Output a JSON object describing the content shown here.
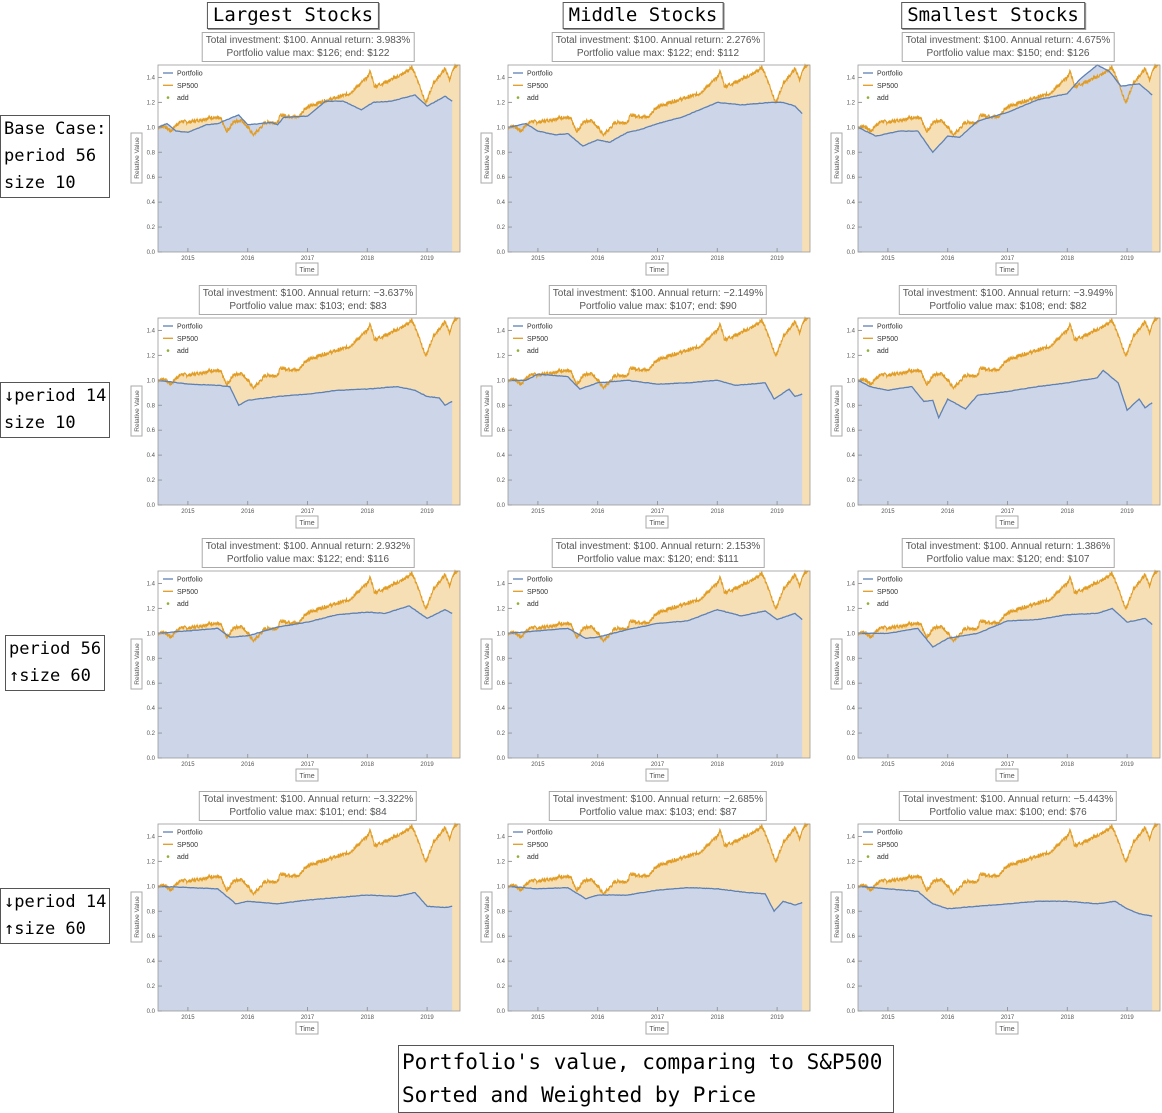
{
  "column_titles": [
    "Largest Stocks",
    "Middle Stocks",
    "Smallest Stocks"
  ],
  "row_labels": [
    [
      "Base Case:",
      "period 56",
      "size 10"
    ],
    [
      "↓period 14",
      "size 10"
    ],
    [
      "period 56",
      "↑size 60"
    ],
    [
      "↓period 14",
      "↑size 60"
    ]
  ],
  "caption": [
    "Portfolio's value, comparing to S&P500",
    "Sorted and Weighted by Price"
  ],
  "colors": {
    "portfolio": "#5e81b5",
    "sp500": "#e19c24",
    "add": "#8fb032",
    "portfolio_fill": "#cdd6e8",
    "sp500_fill": "#f7dfb5"
  },
  "chart_data": {
    "type": "area",
    "xlabel": "Time",
    "ylabel": "Relative Value",
    "xlim": [
      2014.5,
      2019.55
    ],
    "ylim": [
      0,
      1.5
    ],
    "x_ticks": [
      "2015",
      "2016",
      "2017",
      "2018",
      "2019"
    ],
    "y_ticks": [
      "0.0",
      "0.2",
      "0.4",
      "0.6",
      "0.8",
      "1.0",
      "1.2",
      "1.4"
    ],
    "legend": [
      "Portfolio",
      "SP500",
      "add"
    ],
    "legend_position": "top-left",
    "sp500": [
      [
        2014.5,
        1.0
      ],
      [
        2014.6,
        1.01
      ],
      [
        2014.72,
        0.97
      ],
      [
        2014.8,
        1.02
      ],
      [
        2014.9,
        1.05
      ],
      [
        2015.0,
        1.04
      ],
      [
        2015.2,
        1.06
      ],
      [
        2015.4,
        1.08
      ],
      [
        2015.55,
        1.07
      ],
      [
        2015.65,
        0.96
      ],
      [
        2015.75,
        1.04
      ],
      [
        2015.9,
        1.06
      ],
      [
        2016.0,
        1.0
      ],
      [
        2016.1,
        0.94
      ],
      [
        2016.3,
        1.04
      ],
      [
        2016.5,
        1.04
      ],
      [
        2016.55,
        1.1
      ],
      [
        2016.85,
        1.08
      ],
      [
        2016.95,
        1.15
      ],
      [
        2017.2,
        1.2
      ],
      [
        2017.5,
        1.24
      ],
      [
        2017.7,
        1.27
      ],
      [
        2018.0,
        1.4
      ],
      [
        2018.05,
        1.45
      ],
      [
        2018.12,
        1.33
      ],
      [
        2018.3,
        1.36
      ],
      [
        2018.6,
        1.43
      ],
      [
        2018.75,
        1.48
      ],
      [
        2018.85,
        1.37
      ],
      [
        2018.98,
        1.19
      ],
      [
        2019.1,
        1.35
      ],
      [
        2019.3,
        1.47
      ],
      [
        2019.38,
        1.38
      ],
      [
        2019.45,
        1.48
      ],
      [
        2019.55,
        1.52
      ]
    ],
    "panels": [
      {
        "summary": [
          "Total investment: $100. Annual return: 3.983%",
          "Portfolio value max: $126; end: $122"
        ],
        "portfolio": [
          [
            2014.5,
            1.0
          ],
          [
            2014.65,
            1.03
          ],
          [
            2014.8,
            0.97
          ],
          [
            2015.0,
            0.96
          ],
          [
            2015.3,
            1.02
          ],
          [
            2015.5,
            1.03
          ],
          [
            2015.7,
            1.07
          ],
          [
            2015.85,
            1.1
          ],
          [
            2016.0,
            1.02
          ],
          [
            2016.4,
            1.04
          ],
          [
            2016.5,
            1.02
          ],
          [
            2016.6,
            1.08
          ],
          [
            2017.0,
            1.09
          ],
          [
            2017.3,
            1.21
          ],
          [
            2017.6,
            1.21
          ],
          [
            2017.9,
            1.14
          ],
          [
            2018.1,
            1.2
          ],
          [
            2018.4,
            1.21
          ],
          [
            2018.8,
            1.26
          ],
          [
            2019.0,
            1.17
          ],
          [
            2019.3,
            1.25
          ],
          [
            2019.42,
            1.21
          ]
        ]
      },
      {
        "summary": [
          "Total investment: $100. Annual return: 2.276%",
          "Portfolio value max: $122; end: $112"
        ],
        "portfolio": [
          [
            2014.5,
            1.0
          ],
          [
            2014.8,
            1.03
          ],
          [
            2015.0,
            0.97
          ],
          [
            2015.3,
            0.94
          ],
          [
            2015.5,
            0.95
          ],
          [
            2015.75,
            0.85
          ],
          [
            2016.0,
            0.9
          ],
          [
            2016.2,
            0.88
          ],
          [
            2016.5,
            0.96
          ],
          [
            2016.7,
            0.98
          ],
          [
            2017.0,
            1.03
          ],
          [
            2017.4,
            1.08
          ],
          [
            2017.8,
            1.16
          ],
          [
            2018.0,
            1.2
          ],
          [
            2018.4,
            1.18
          ],
          [
            2018.9,
            1.2
          ],
          [
            2019.1,
            1.2
          ],
          [
            2019.3,
            1.17
          ],
          [
            2019.42,
            1.11
          ]
        ]
      },
      {
        "summary": [
          "Total investment: $100. Annual return: 4.675%",
          "Portfolio value max: $150; end: $126"
        ],
        "portfolio": [
          [
            2014.5,
            1.0
          ],
          [
            2014.8,
            0.93
          ],
          [
            2015.2,
            0.97
          ],
          [
            2015.5,
            0.97
          ],
          [
            2015.75,
            0.8
          ],
          [
            2016.0,
            0.93
          ],
          [
            2016.2,
            0.92
          ],
          [
            2016.5,
            1.05
          ],
          [
            2017.0,
            1.12
          ],
          [
            2017.5,
            1.22
          ],
          [
            2018.0,
            1.27
          ],
          [
            2018.2,
            1.38
          ],
          [
            2018.5,
            1.5
          ],
          [
            2018.7,
            1.45
          ],
          [
            2018.9,
            1.33
          ],
          [
            2019.2,
            1.35
          ],
          [
            2019.42,
            1.26
          ]
        ]
      },
      {
        "summary": [
          "Total investment: $100. Annual return: −3.637%",
          "Portfolio value max: $103; end: $83"
        ],
        "portfolio": [
          [
            2014.5,
            1.0
          ],
          [
            2015.0,
            0.97
          ],
          [
            2015.5,
            0.96
          ],
          [
            2015.7,
            0.95
          ],
          [
            2015.85,
            0.8
          ],
          [
            2016.0,
            0.84
          ],
          [
            2016.5,
            0.87
          ],
          [
            2017.0,
            0.89
          ],
          [
            2017.5,
            0.92
          ],
          [
            2018.0,
            0.93
          ],
          [
            2018.5,
            0.95
          ],
          [
            2018.8,
            0.92
          ],
          [
            2019.0,
            0.87
          ],
          [
            2019.2,
            0.86
          ],
          [
            2019.3,
            0.8
          ],
          [
            2019.42,
            0.83
          ]
        ]
      },
      {
        "summary": [
          "Total investment: $100. Annual return: −2.149%",
          "Portfolio value max: $107; end: $90"
        ],
        "portfolio": [
          [
            2014.5,
            1.0
          ],
          [
            2014.8,
            1.0
          ],
          [
            2015.0,
            1.05
          ],
          [
            2015.5,
            1.03
          ],
          [
            2015.7,
            0.93
          ],
          [
            2016.0,
            0.98
          ],
          [
            2016.5,
            1.0
          ],
          [
            2017.0,
            0.97
          ],
          [
            2017.5,
            0.98
          ],
          [
            2018.0,
            1.0
          ],
          [
            2018.3,
            0.96
          ],
          [
            2018.8,
            0.98
          ],
          [
            2018.95,
            0.85
          ],
          [
            2019.2,
            0.93
          ],
          [
            2019.3,
            0.87
          ],
          [
            2019.42,
            0.89
          ]
        ]
      },
      {
        "summary": [
          "Total investment: $100. Annual return: −3.949%",
          "Portfolio value max: $108; end: $82"
        ],
        "portfolio": [
          [
            2014.5,
            1.0
          ],
          [
            2014.7,
            0.95
          ],
          [
            2015.0,
            0.92
          ],
          [
            2015.4,
            0.95
          ],
          [
            2015.6,
            0.83
          ],
          [
            2015.75,
            0.84
          ],
          [
            2015.85,
            0.7
          ],
          [
            2016.0,
            0.85
          ],
          [
            2016.3,
            0.77
          ],
          [
            2016.5,
            0.88
          ],
          [
            2017.0,
            0.91
          ],
          [
            2017.5,
            0.95
          ],
          [
            2018.0,
            0.98
          ],
          [
            2018.5,
            1.02
          ],
          [
            2018.6,
            1.08
          ],
          [
            2018.85,
            0.98
          ],
          [
            2019.0,
            0.76
          ],
          [
            2019.2,
            0.85
          ],
          [
            2019.3,
            0.78
          ],
          [
            2019.42,
            0.82
          ]
        ]
      },
      {
        "summary": [
          "Total investment: $100. Annual return: 2.932%",
          "Portfolio value max: $122; end: $116"
        ],
        "portfolio": [
          [
            2014.5,
            1.0
          ],
          [
            2015.0,
            1.02
          ],
          [
            2015.5,
            1.04
          ],
          [
            2015.7,
            0.97
          ],
          [
            2016.0,
            0.98
          ],
          [
            2016.5,
            1.05
          ],
          [
            2017.0,
            1.09
          ],
          [
            2017.5,
            1.15
          ],
          [
            2018.0,
            1.17
          ],
          [
            2018.3,
            1.16
          ],
          [
            2018.7,
            1.22
          ],
          [
            2019.0,
            1.12
          ],
          [
            2019.3,
            1.19
          ],
          [
            2019.42,
            1.16
          ]
        ]
      },
      {
        "summary": [
          "Total investment: $100. Annual return: 2.153%",
          "Portfolio value max: $120; end: $111"
        ],
        "portfolio": [
          [
            2014.5,
            1.0
          ],
          [
            2015.0,
            1.02
          ],
          [
            2015.5,
            1.04
          ],
          [
            2015.8,
            0.96
          ],
          [
            2016.0,
            0.97
          ],
          [
            2016.5,
            1.03
          ],
          [
            2017.0,
            1.08
          ],
          [
            2017.5,
            1.1
          ],
          [
            2018.0,
            1.19
          ],
          [
            2018.4,
            1.14
          ],
          [
            2018.8,
            1.18
          ],
          [
            2019.0,
            1.11
          ],
          [
            2019.3,
            1.16
          ],
          [
            2019.42,
            1.11
          ]
        ]
      },
      {
        "summary": [
          "Total investment: $100. Annual return: 1.386%",
          "Portfolio value max: $120; end: $107"
        ],
        "portfolio": [
          [
            2014.5,
            1.0
          ],
          [
            2015.0,
            1.0
          ],
          [
            2015.5,
            1.04
          ],
          [
            2015.75,
            0.89
          ],
          [
            2016.0,
            0.96
          ],
          [
            2016.5,
            1.0
          ],
          [
            2017.0,
            1.1
          ],
          [
            2017.5,
            1.11
          ],
          [
            2018.0,
            1.15
          ],
          [
            2018.5,
            1.16
          ],
          [
            2018.75,
            1.2
          ],
          [
            2019.0,
            1.09
          ],
          [
            2019.3,
            1.12
          ],
          [
            2019.42,
            1.07
          ]
        ]
      },
      {
        "summary": [
          "Total investment: $100. Annual return: −3.322%",
          "Portfolio value max: $101; end: $84"
        ],
        "portfolio": [
          [
            2014.5,
            1.0
          ],
          [
            2015.0,
            0.99
          ],
          [
            2015.5,
            0.98
          ],
          [
            2015.8,
            0.86
          ],
          [
            2016.0,
            0.88
          ],
          [
            2016.5,
            0.86
          ],
          [
            2017.0,
            0.89
          ],
          [
            2017.5,
            0.91
          ],
          [
            2018.0,
            0.93
          ],
          [
            2018.5,
            0.92
          ],
          [
            2018.8,
            0.95
          ],
          [
            2019.0,
            0.84
          ],
          [
            2019.3,
            0.83
          ],
          [
            2019.42,
            0.84
          ]
        ]
      },
      {
        "summary": [
          "Total investment: $100. Annual return: −2.685%",
          "Portfolio value max: $103; end: $87"
        ],
        "portfolio": [
          [
            2014.5,
            1.0
          ],
          [
            2015.0,
            0.98
          ],
          [
            2015.5,
            0.99
          ],
          [
            2015.8,
            0.9
          ],
          [
            2016.0,
            0.93
          ],
          [
            2016.5,
            0.93
          ],
          [
            2017.0,
            0.97
          ],
          [
            2017.5,
            0.99
          ],
          [
            2018.0,
            0.98
          ],
          [
            2018.5,
            0.95
          ],
          [
            2018.8,
            0.94
          ],
          [
            2018.95,
            0.8
          ],
          [
            2019.1,
            0.88
          ],
          [
            2019.3,
            0.85
          ],
          [
            2019.42,
            0.87
          ]
        ]
      },
      {
        "summary": [
          "Total investment: $100. Annual return: −5.443%",
          "Portfolio value max: $100; end: $76"
        ],
        "portfolio": [
          [
            2014.5,
            1.0
          ],
          [
            2015.0,
            0.98
          ],
          [
            2015.5,
            0.96
          ],
          [
            2015.75,
            0.86
          ],
          [
            2016.0,
            0.82
          ],
          [
            2016.5,
            0.84
          ],
          [
            2017.0,
            0.86
          ],
          [
            2017.5,
            0.88
          ],
          [
            2018.0,
            0.88
          ],
          [
            2018.5,
            0.86
          ],
          [
            2018.8,
            0.88
          ],
          [
            2019.0,
            0.82
          ],
          [
            2019.2,
            0.78
          ],
          [
            2019.42,
            0.76
          ]
        ]
      }
    ]
  }
}
